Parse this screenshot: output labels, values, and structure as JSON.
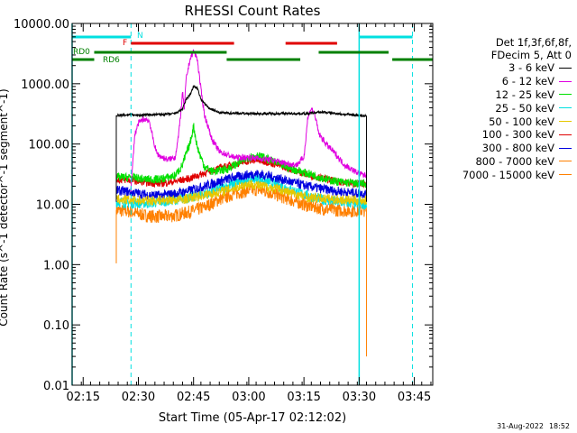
{
  "chart_data": {
    "type": "line",
    "title": "RHESSI Count Rates",
    "xlabel": "Start Time (05-Apr-17 02:12:02)",
    "ylabel": "Count Rate (s^-1 detector^-1 segment^-1)",
    "yscale": "log",
    "ylim": [
      0.01,
      10000
    ],
    "xlim_minutes": [
      0,
      98
    ],
    "x_unit": "minutes after 02:12:02",
    "x_ticks": [
      {
        "t": 3,
        "label": "02:15"
      },
      {
        "t": 18,
        "label": "02:30"
      },
      {
        "t": 33,
        "label": "02:45"
      },
      {
        "t": 48,
        "label": "03:00"
      },
      {
        "t": 63,
        "label": "03:15"
      },
      {
        "t": 78,
        "label": "03:30"
      },
      {
        "t": 93,
        "label": "03:45"
      }
    ],
    "y_ticks": [
      {
        "v": 0.01,
        "label": "0.01"
      },
      {
        "v": 0.1,
        "label": "0.10"
      },
      {
        "v": 1,
        "label": "1.00"
      },
      {
        "v": 10,
        "label": "10.00"
      },
      {
        "v": 100,
        "label": "100.00"
      },
      {
        "v": 1000,
        "label": "1000.00"
      },
      {
        "v": 10000,
        "label": "10000.00"
      }
    ],
    "legend_header": [
      "Det 1f,3f,6f,8f,",
      "FDecim 5, Att 0"
    ],
    "series": [
      {
        "name": "3 - 6 keV",
        "color": "#000000",
        "points": [
          [
            12,
            300
          ],
          [
            14,
            300
          ],
          [
            16,
            310
          ],
          [
            17,
            300
          ],
          [
            18,
            300
          ],
          [
            20,
            305
          ],
          [
            25,
            310
          ],
          [
            28,
            320
          ],
          [
            30,
            380
          ],
          [
            31,
            550
          ],
          [
            32,
            650
          ],
          [
            33,
            900
          ],
          [
            34,
            850
          ],
          [
            35,
            550
          ],
          [
            37,
            400
          ],
          [
            40,
            330
          ],
          [
            48,
            320
          ],
          [
            56,
            320
          ],
          [
            60,
            320
          ],
          [
            64,
            320
          ],
          [
            66,
            330
          ],
          [
            68,
            340
          ],
          [
            70,
            330
          ],
          [
            74,
            310
          ],
          [
            78,
            300
          ],
          [
            80,
            290
          ]
        ]
      },
      {
        "name": "6 - 12 keV",
        "color": "#e000e0",
        "points": [
          [
            16,
            18
          ],
          [
            17,
            140
          ],
          [
            18,
            220
          ],
          [
            19,
            250
          ],
          [
            20,
            260
          ],
          [
            21,
            240
          ],
          [
            22,
            120
          ],
          [
            23,
            70
          ],
          [
            24,
            62
          ],
          [
            26,
            55
          ],
          [
            28,
            60
          ],
          [
            29,
            150
          ],
          [
            30,
            700
          ],
          [
            30.5,
            400
          ],
          [
            31,
            1200
          ],
          [
            32,
            2500
          ],
          [
            33,
            3500
          ],
          [
            34,
            2600
          ],
          [
            35,
            800
          ],
          [
            36,
            300
          ],
          [
            38,
            120
          ],
          [
            40,
            75
          ],
          [
            44,
            60
          ],
          [
            48,
            60
          ],
          [
            54,
            55
          ],
          [
            58,
            48
          ],
          [
            61,
            45
          ],
          [
            63,
            60
          ],
          [
            64,
            260
          ],
          [
            65,
            400
          ],
          [
            66,
            300
          ],
          [
            67,
            150
          ],
          [
            69,
            100
          ],
          [
            71,
            75
          ],
          [
            74,
            45
          ],
          [
            78,
            32
          ],
          [
            80,
            30
          ]
        ]
      },
      {
        "name": "12 - 25 keV",
        "color": "#00e000",
        "points": [
          [
            12,
            28
          ],
          [
            16,
            28
          ],
          [
            20,
            26
          ],
          [
            24,
            26
          ],
          [
            28,
            30
          ],
          [
            30,
            45
          ],
          [
            31,
            70
          ],
          [
            32,
            100
          ],
          [
            33,
            200
          ],
          [
            34,
            90
          ],
          [
            35,
            60
          ],
          [
            36,
            42
          ],
          [
            38,
            35
          ],
          [
            42,
            38
          ],
          [
            45,
            48
          ],
          [
            48,
            60
          ],
          [
            50,
            65
          ],
          [
            52,
            60
          ],
          [
            55,
            50
          ],
          [
            58,
            42
          ],
          [
            62,
            35
          ],
          [
            66,
            30
          ],
          [
            70,
            25
          ],
          [
            74,
            23
          ],
          [
            78,
            22
          ],
          [
            80,
            22
          ]
        ]
      },
      {
        "name": "25 - 50 keV",
        "color": "#00e0e0",
        "points": [
          [
            12,
            11
          ],
          [
            16,
            10.5
          ],
          [
            20,
            10.5
          ],
          [
            24,
            11
          ],
          [
            28,
            12
          ],
          [
            32,
            13
          ],
          [
            36,
            15
          ],
          [
            40,
            18
          ],
          [
            44,
            22
          ],
          [
            48,
            26
          ],
          [
            50,
            27
          ],
          [
            52,
            25
          ],
          [
            56,
            21
          ],
          [
            60,
            17
          ],
          [
            64,
            14
          ],
          [
            68,
            12
          ],
          [
            72,
            11
          ],
          [
            76,
            10.5
          ],
          [
            80,
            10
          ]
        ]
      },
      {
        "name": "50 - 100 keV",
        "color": "#e6c800",
        "points": [
          [
            12,
            12
          ],
          [
            20,
            11.5
          ],
          [
            30,
            12
          ],
          [
            40,
            16
          ],
          [
            48,
            22
          ],
          [
            56,
            18
          ],
          [
            64,
            13
          ],
          [
            72,
            12
          ],
          [
            80,
            11.5
          ]
        ]
      },
      {
        "name": "100 - 300 keV",
        "color": "#e00000",
        "points": [
          [
            12,
            26
          ],
          [
            16,
            25
          ],
          [
            20,
            23
          ],
          [
            24,
            22
          ],
          [
            28,
            24
          ],
          [
            32,
            27
          ],
          [
            36,
            33
          ],
          [
            40,
            40
          ],
          [
            44,
            46
          ],
          [
            48,
            52
          ],
          [
            50,
            54
          ],
          [
            52,
            52
          ],
          [
            56,
            45
          ],
          [
            60,
            37
          ],
          [
            64,
            31
          ],
          [
            68,
            27
          ],
          [
            72,
            24
          ],
          [
            76,
            22
          ],
          [
            80,
            22
          ]
        ]
      },
      {
        "name": "300 - 800 keV",
        "color": "#0000e0",
        "points": [
          [
            12,
            17
          ],
          [
            16,
            16
          ],
          [
            20,
            14.5
          ],
          [
            24,
            14
          ],
          [
            28,
            15
          ],
          [
            32,
            17
          ],
          [
            36,
            20
          ],
          [
            40,
            24
          ],
          [
            44,
            28
          ],
          [
            48,
            31
          ],
          [
            50,
            32
          ],
          [
            52,
            31
          ],
          [
            56,
            27
          ],
          [
            60,
            23
          ],
          [
            64,
            20
          ],
          [
            68,
            18
          ],
          [
            72,
            16.5
          ],
          [
            76,
            15.5
          ],
          [
            80,
            15
          ]
        ]
      },
      {
        "name": "800 - 7000 keV",
        "color": "#ff8000",
        "points": [
          [
            12,
            8
          ],
          [
            16,
            7.5
          ],
          [
            20,
            6.5
          ],
          [
            24,
            6.2
          ],
          [
            28,
            6.5
          ],
          [
            32,
            7.5
          ],
          [
            36,
            9
          ],
          [
            40,
            12
          ],
          [
            44,
            15
          ],
          [
            48,
            17
          ],
          [
            50,
            17.5
          ],
          [
            52,
            17
          ],
          [
            56,
            14
          ],
          [
            60,
            11.5
          ],
          [
            64,
            9.5
          ],
          [
            68,
            8.5
          ],
          [
            72,
            8
          ],
          [
            76,
            7.8
          ],
          [
            80,
            8
          ]
        ]
      },
      {
        "name": "7000 - 15000 keV",
        "color": "#ff8000",
        "points": []
      }
    ],
    "markers": [
      {
        "kind": "vline",
        "t": 0,
        "color": "#00e0e0",
        "style": "solid"
      },
      {
        "kind": "vline",
        "t": 16,
        "color": "#00e0e0",
        "style": "dashed"
      },
      {
        "kind": "vline",
        "t": 78,
        "color": "#00e0e0",
        "style": "solid"
      },
      {
        "kind": "vline",
        "t": 92.5,
        "color": "#00e0e0",
        "style": "dashed"
      }
    ],
    "status_bars": [
      {
        "label": "",
        "color": "#00e0e0",
        "level": 0,
        "segments": [
          [
            0,
            16
          ],
          [
            78,
            92.5
          ]
        ]
      },
      {
        "label": "N",
        "color": "#00e0e0",
        "level": 0,
        "segments": []
      },
      {
        "label": "F",
        "color": "#e00000",
        "level": 1,
        "segments": [
          [
            16,
            44
          ],
          [
            58,
            72
          ]
        ]
      },
      {
        "label": "RD0",
        "color": "#008000",
        "level": 2,
        "segments": [
          [
            6,
            42
          ],
          [
            67,
            86
          ]
        ]
      },
      {
        "label": "RD6",
        "color": "#008000",
        "level": 3,
        "segments": [
          [
            0,
            6
          ],
          [
            42,
            62
          ],
          [
            87,
            98
          ]
        ]
      }
    ]
  },
  "footer": {
    "date": "31-Aug-2022",
    "time": "18:52"
  }
}
